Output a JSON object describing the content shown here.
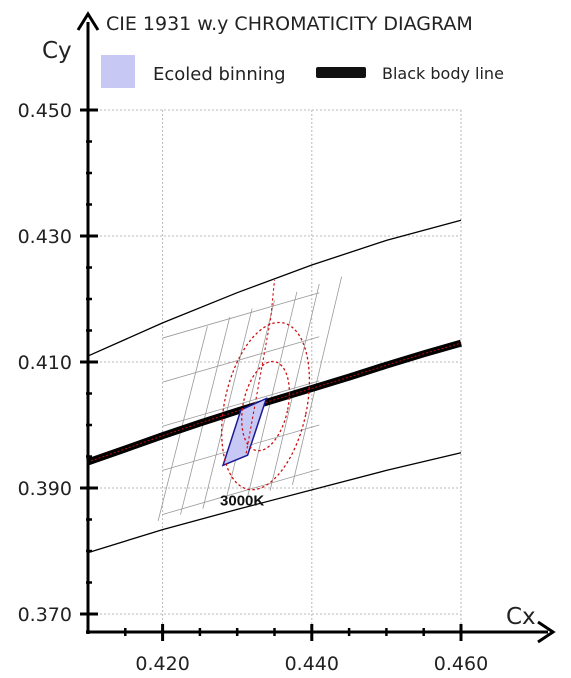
{
  "chart_data": {
    "type": "line",
    "title": "CIE 1931 w.y CHROMATICITY DIAGRAM",
    "xlabel": "Cx",
    "ylabel": "Cy",
    "xlim": [
      0.41,
      0.46
    ],
    "ylim": [
      0.368,
      0.452
    ],
    "x_ticks": [
      0.42,
      0.44,
      0.46
    ],
    "x_tick_labels": [
      "0.420",
      "0.440",
      "0.460"
    ],
    "y_ticks": [
      0.37,
      0.39,
      0.41,
      0.43,
      0.45
    ],
    "y_tick_labels": [
      "0.370",
      "0.390",
      "0.410",
      "0.430",
      "0.450"
    ],
    "grid": true,
    "legend": [
      {
        "label": "Ecoled binning",
        "color": "#c8c8f5"
      },
      {
        "label": "Black body line",
        "color": "#111111"
      }
    ],
    "black_body_line": {
      "name": "Black body line",
      "x": [
        0.4099,
        0.415,
        0.42,
        0.425,
        0.43,
        0.435,
        0.44,
        0.445,
        0.45,
        0.455,
        0.46
      ],
      "y": [
        0.3941,
        0.3962,
        0.3983,
        0.4003,
        0.4022,
        0.404,
        0.4058,
        0.4076,
        0.4095,
        0.4113,
        0.413
      ]
    },
    "upper_boundary": {
      "x": [
        0.4099,
        0.42,
        0.43,
        0.44,
        0.45,
        0.46
      ],
      "y": [
        0.4109,
        0.4162,
        0.421,
        0.4254,
        0.4293,
        0.4325
      ]
    },
    "lower_boundary": {
      "x": [
        0.4099,
        0.42,
        0.43,
        0.44,
        0.45,
        0.46
      ],
      "y": [
        0.3797,
        0.3834,
        0.3866,
        0.3897,
        0.3928,
        0.3956
      ]
    },
    "ecoled_bin": {
      "name": "Ecoled binning",
      "polygon": [
        [
          0.4281,
          0.3936
        ],
        [
          0.4305,
          0.4024
        ],
        [
          0.4339,
          0.4042
        ],
        [
          0.4314,
          0.3952
        ]
      ]
    },
    "isotherm_grid_x": [
      0.4198,
      0.4228,
      0.4258,
      0.4288,
      0.4318,
      0.4348,
      0.4378
    ],
    "isotherm_grid_y": [
      0.3858,
      0.3928,
      0.3998,
      0.4068,
      0.4138
    ],
    "ellipses": [
      {
        "cx": 0.4338,
        "cy": 0.403,
        "rx": 0.003,
        "ry": 0.0072,
        "tilt": 12
      },
      {
        "cx": 0.4338,
        "cy": 0.403,
        "rx": 0.0055,
        "ry": 0.0135,
        "tilt": 12
      }
    ],
    "annotations": [
      {
        "text": "3000K",
        "x": 0.4277,
        "y": 0.3872
      }
    ],
    "colors": {
      "axis": "#000000",
      "grid": "#b8b8b8",
      "ellipse": "#cc1111",
      "bin_fill": "#c8c8f5",
      "bin_stroke": "#1a1a99"
    }
  }
}
